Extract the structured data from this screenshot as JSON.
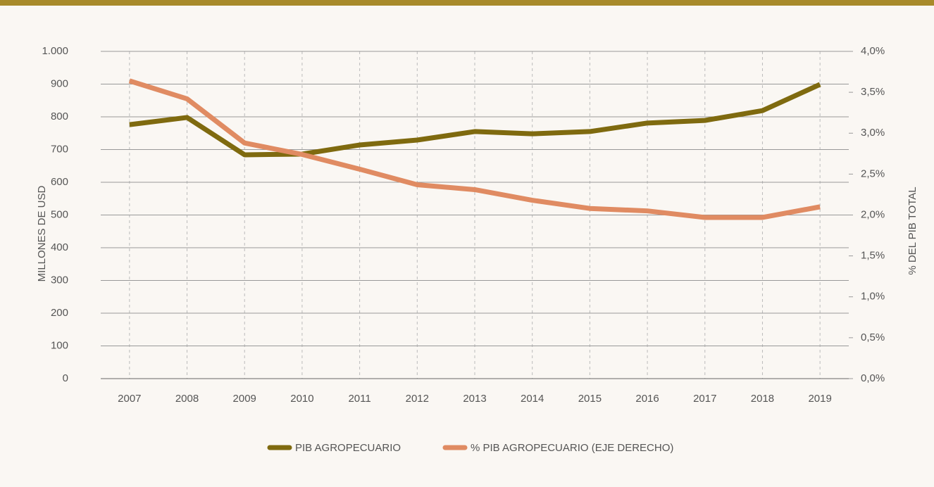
{
  "chart_data": {
    "type": "line",
    "categories": [
      "2007",
      "2008",
      "2009",
      "2010",
      "2011",
      "2012",
      "2013",
      "2014",
      "2015",
      "2016",
      "2017",
      "2018",
      "2019"
    ],
    "series": [
      {
        "name": "PIB AGROPECUARIO",
        "color": "#7f6a0f",
        "values": [
          776,
          798,
          684,
          686,
          714,
          729,
          755,
          748,
          755,
          781,
          789,
          819,
          899
        ]
      },
      {
        "name": "% PIB AGROPECUARIO (EJE DERECHO)",
        "color": "#e08b62",
        "axis": "y2",
        "values": [
          3.64,
          3.42,
          2.88,
          2.74,
          2.56,
          2.37,
          2.31,
          2.18,
          2.08,
          2.05,
          1.97,
          1.97,
          2.1
        ]
      }
    ],
    "ylabel": "MILLONES DE USD",
    "y2label": "% DEL PIB TOTAL",
    "ylim": [
      0,
      1000
    ],
    "yticks": [
      0,
      100,
      200,
      300,
      400,
      500,
      600,
      700,
      800,
      900,
      {
        "value": 1000,
        "label": "1.000"
      }
    ],
    "y2lim": [
      0,
      4
    ],
    "y2ticks": [
      {
        "value": 0,
        "label": "0,0%"
      },
      {
        "value": 0.5,
        "label": "0,5%"
      },
      {
        "value": 1,
        "label": "1,0%"
      },
      {
        "value": 1.5,
        "label": "1,5%"
      },
      {
        "value": 2,
        "label": "2,0%"
      },
      {
        "value": 2.5,
        "label": "2,5%"
      },
      {
        "value": 3,
        "label": "3,0%"
      },
      {
        "value": 3.5,
        "label": "3,5%"
      },
      {
        "value": 4,
        "label": "4,0%"
      }
    ],
    "grid": true
  }
}
